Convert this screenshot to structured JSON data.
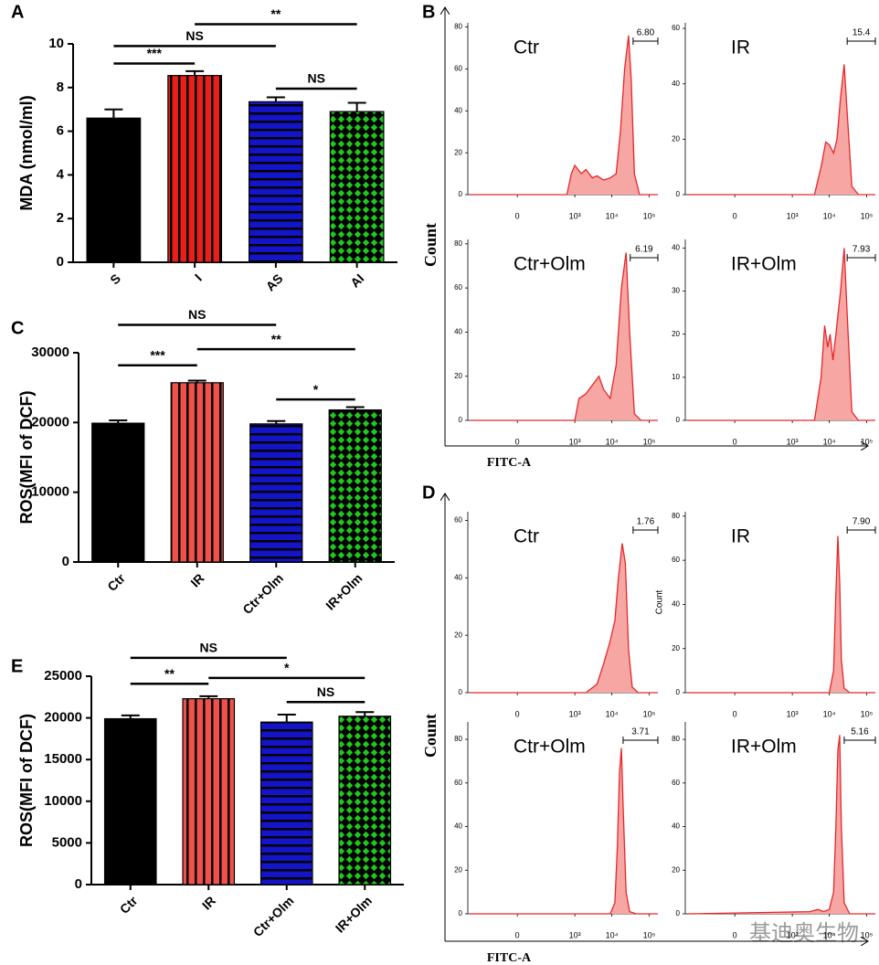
{
  "chart_data": [
    {
      "type": "bar",
      "panel": "A",
      "ylabel": "MDA (nmol/ml)",
      "categories": [
        "S",
        "I",
        "AS",
        "AI"
      ],
      "values": [
        6.6,
        8.55,
        7.35,
        6.9
      ],
      "errors": [
        0.4,
        0.2,
        0.2,
        0.4
      ],
      "colors": [
        "#000000",
        "#e8201c",
        "#1414c8",
        "#1ec81e"
      ],
      "patterns": [
        "solid",
        "vertical",
        "horizontal",
        "crosshatch"
      ],
      "ylim": [
        0,
        10
      ],
      "yticks": [
        0,
        2,
        4,
        6,
        8,
        10
      ],
      "comparisons": [
        {
          "from": "S",
          "to": "I",
          "y": 9.1,
          "label": "***"
        },
        {
          "from": "S",
          "to": "AS",
          "y": 9.9,
          "label": "NS"
        },
        {
          "from": "I",
          "to": "AI",
          "y": 10.9,
          "label": "**"
        },
        {
          "from": "AS",
          "to": "AI",
          "y": 7.95,
          "label": "NS"
        }
      ]
    },
    {
      "type": "flow",
      "panel": "B",
      "ylabel": "Count",
      "xlabel": "FITC-A",
      "xlim": [
        -600,
        170000
      ],
      "xticks": [
        0,
        {
          "value": 1000,
          "label": "10³"
        },
        {
          "value": 10000,
          "label": "10⁴"
        },
        {
          "value": 100000,
          "label": "10⁵"
        }
      ],
      "color": "#e8262a",
      "fill": "#f6a6a3",
      "plots": [
        {
          "title": "Ctr",
          "ylim": [
            0,
            82
          ],
          "yticks": [
            0,
            20,
            40,
            60,
            80
          ],
          "x": [
            -500,
            600,
            800,
            1000,
            1500,
            2000,
            3000,
            4000,
            6000,
            9000,
            13000,
            17000,
            22000,
            28000,
            33000,
            40000,
            55000,
            170000
          ],
          "values": [
            0,
            0,
            10,
            14,
            10,
            12,
            8,
            9,
            7,
            8,
            10,
            30,
            60,
            76,
            55,
            10,
            0,
            0
          ],
          "gate": {
            "range": [
              37000,
              170000
            ],
            "value": 6.8,
            "label": "6.80"
          }
        },
        {
          "title": "IR",
          "ylim": [
            0,
            62
          ],
          "yticks": [
            0,
            20,
            40,
            60
          ],
          "x": [
            -500,
            4000,
            6000,
            8000,
            10000,
            13000,
            16000,
            20000,
            25000,
            30000,
            40000,
            60000,
            170000
          ],
          "values": [
            0,
            0,
            10,
            19,
            18,
            15,
            20,
            35,
            47,
            30,
            3,
            0,
            0
          ],
          "gate": {
            "range": [
              30000,
              170000
            ],
            "value": 15.4,
            "label": "15.4"
          }
        },
        {
          "title": "Ctr+Olm",
          "ylim": [
            0,
            82
          ],
          "yticks": [
            0,
            20,
            40,
            60,
            80
          ],
          "x": [
            -500,
            1000,
            1300,
            2000,
            3000,
            4500,
            6000,
            9000,
            13000,
            18000,
            24000,
            30000,
            40000,
            60000,
            170000
          ],
          "values": [
            0,
            0,
            10,
            12,
            16,
            20,
            14,
            10,
            25,
            60,
            76,
            40,
            3,
            0,
            0
          ],
          "gate": {
            "range": [
              31000,
              170000
            ],
            "value": 6.19,
            "label": "6.19"
          }
        },
        {
          "title": "IR+Olm",
          "ylim": [
            0,
            42
          ],
          "yticks": [
            0,
            10,
            20,
            30,
            40
          ],
          "x": [
            -500,
            4000,
            6000,
            7500,
            9000,
            10500,
            12500,
            15000,
            20000,
            25000,
            30000,
            40000,
            60000,
            170000
          ],
          "values": [
            0,
            0,
            10,
            22,
            17,
            20,
            14,
            20,
            30,
            40,
            25,
            2,
            0,
            0
          ],
          "gate": {
            "range": [
              30000,
              170000
            ],
            "value": 7.93,
            "label": "7.93"
          }
        }
      ]
    },
    {
      "type": "bar",
      "panel": "C",
      "ylabel": "ROS(MFI of DCF)",
      "categories": [
        "Ctr",
        "IR",
        "Ctr+Olm",
        "IR+Olm"
      ],
      "values": [
        19900,
        25700,
        19800,
        21800
      ],
      "errors": [
        400,
        300,
        400,
        400
      ],
      "colors": [
        "#000000",
        "#f0524a",
        "#1414c8",
        "#1ec81e"
      ],
      "patterns": [
        "solid",
        "vertical",
        "horizontal",
        "crosshatch"
      ],
      "ylim": [
        0,
        30000
      ],
      "yticks": [
        0,
        10000,
        20000,
        30000
      ],
      "comparisons": [
        {
          "from": "Ctr",
          "to": "Ctr+Olm",
          "y": 34000,
          "label": "NS"
        },
        {
          "from": "Ctr",
          "to": "IR",
          "y": 28200,
          "label": "***"
        },
        {
          "from": "IR",
          "to": "IR+Olm",
          "y": 30500,
          "label": "**"
        },
        {
          "from": "Ctr+Olm",
          "to": "IR+Olm",
          "y": 23300,
          "label": "*"
        }
      ]
    },
    {
      "type": "flow",
      "panel": "D",
      "ylabel": "Count",
      "xlabel": "FITC-A",
      "xlim": [
        -600,
        170000
      ],
      "xticks": [
        0,
        {
          "value": 1000,
          "label": "10³"
        },
        {
          "value": 10000,
          "label": "10⁴"
        },
        {
          "value": 100000,
          "label": "10⁵"
        }
      ],
      "color": "#e8262a",
      "fill": "#f6a6a3",
      "plots": [
        {
          "title": "Ctr",
          "ylim": [
            0,
            63
          ],
          "yticks": [
            0,
            20,
            40,
            60
          ],
          "x": [
            -500,
            2000,
            4000,
            6000,
            9000,
            12000,
            15000,
            19000,
            23000,
            28000,
            35000,
            50000,
            170000
          ],
          "values": [
            0,
            0,
            3,
            10,
            18,
            25,
            40,
            52,
            45,
            15,
            2,
            0,
            0
          ],
          "gate": {
            "range": [
              37000,
              170000
            ],
            "value": 1.76,
            "label": "1.76"
          }
        },
        {
          "title": "IR",
          "ylabel": "Count",
          "ylim": [
            0,
            82
          ],
          "yticks": [
            0,
            20,
            40,
            60,
            80
          ],
          "x": [
            -500,
            10000,
            13000,
            15000,
            17000,
            19000,
            21000,
            25000,
            35000,
            170000
          ],
          "values": [
            0,
            0,
            10,
            45,
            71,
            50,
            15,
            2,
            0,
            0
          ],
          "gate": {
            "range": [
              30000,
              170000
            ],
            "value": 7.9,
            "label": "7.90"
          }
        },
        {
          "title": "Ctr+Olm",
          "ylim": [
            0,
            88
          ],
          "yticks": [
            0,
            20,
            40,
            60,
            80
          ],
          "x": [
            -500,
            9000,
            12000,
            14000,
            16000,
            18000,
            20000,
            24000,
            30000,
            45000,
            170000
          ],
          "values": [
            0,
            0,
            5,
            30,
            65,
            76,
            50,
            10,
            1,
            0,
            0
          ],
          "gate": {
            "range": [
              20000,
              170000
            ],
            "value": 3.71,
            "label": "3.71"
          }
        },
        {
          "title": "IR+Olm",
          "ylim": [
            0,
            88
          ],
          "yticks": [
            0,
            20,
            40,
            60,
            80
          ],
          "x": [
            -500,
            3000,
            5000,
            7000,
            10000,
            13000,
            15000,
            17000,
            19000,
            21000,
            25000,
            35000,
            170000
          ],
          "values": [
            0,
            1,
            2,
            1,
            2,
            10,
            40,
            75,
            82,
            40,
            5,
            0,
            0
          ],
          "gate": {
            "range": [
              25000,
              170000
            ],
            "value": 5.16,
            "label": "5.16"
          }
        }
      ]
    },
    {
      "type": "bar",
      "panel": "E",
      "ylabel": "ROS(MFI of DCF)",
      "categories": [
        "Ctr",
        "IR",
        "Ctr+Olm",
        "IR+Olm"
      ],
      "values": [
        19900,
        22300,
        19500,
        20200
      ],
      "errors": [
        400,
        300,
        900,
        500
      ],
      "colors": [
        "#000000",
        "#f0524a",
        "#1414c8",
        "#1ec81e"
      ],
      "patterns": [
        "solid",
        "vertical",
        "horizontal",
        "crosshatch"
      ],
      "ylim": [
        0,
        25000
      ],
      "yticks": [
        0,
        5000,
        10000,
        15000,
        20000,
        25000
      ],
      "comparisons": [
        {
          "from": "Ctr",
          "to": "Ctr+Olm",
          "y": 27200,
          "label": "NS"
        },
        {
          "from": "Ctr",
          "to": "IR",
          "y": 24100,
          "label": "**"
        },
        {
          "from": "IR",
          "to": "IR+Olm",
          "y": 24800,
          "label": "*"
        },
        {
          "from": "Ctr+Olm",
          "to": "IR+Olm",
          "y": 21900,
          "label": "NS"
        }
      ]
    }
  ],
  "watermark": "基迪奥生物"
}
